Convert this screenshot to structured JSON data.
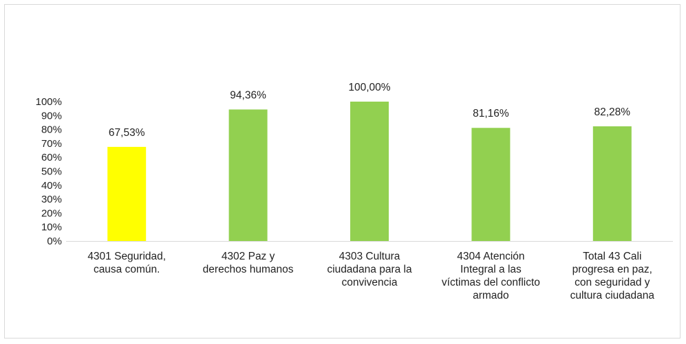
{
  "chart_data": {
    "type": "bar",
    "categories": [
      [
        "4301 Seguridad,",
        "causa común."
      ],
      [
        "4302 Paz y",
        "derechos humanos"
      ],
      [
        "4303 Cultura",
        "ciudadana para la",
        "convivencia"
      ],
      [
        "4304 Atención",
        "Integral a las",
        "víctimas del conflicto",
        "armado"
      ],
      [
        "Total 43 Cali",
        "progresa en paz,",
        "con seguridad y",
        "cultura ciudadana"
      ]
    ],
    "values": [
      67.53,
      94.36,
      100.0,
      81.16,
      82.28
    ],
    "data_labels": [
      "67,53%",
      "94,36%",
      "100,00%",
      "81,16%",
      "82,28%"
    ],
    "bar_colors": [
      "#ffff00",
      "#92d050",
      "#92d050",
      "#92d050",
      "#92d050"
    ],
    "yticks": [
      "0%",
      "10%",
      "20%",
      "30%",
      "40%",
      "50%",
      "60%",
      "70%",
      "80%",
      "90%",
      "100%"
    ],
    "ylim": [
      0,
      100
    ],
    "title": "",
    "xlabel": "",
    "ylabel": "",
    "grid": false,
    "legend": "none"
  }
}
